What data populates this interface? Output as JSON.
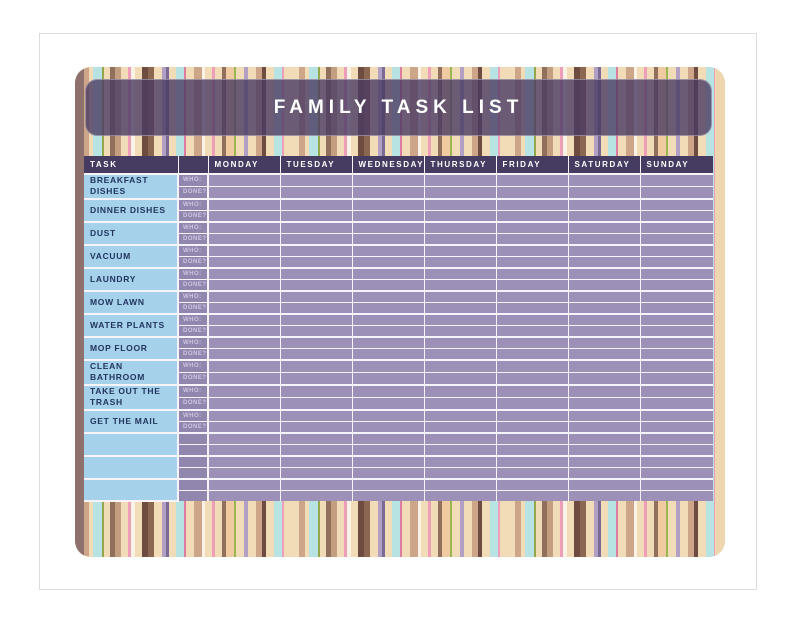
{
  "title": "FAMILY TASK LIST",
  "table": {
    "task_header": "TASK",
    "who_label": "WHO:",
    "done_label": "DONE?",
    "days": [
      "MONDAY",
      "TUESDAY",
      "WEDNESDAY",
      "THURSDAY",
      "FRIDAY",
      "SATURDAY",
      "SUNDAY"
    ],
    "tasks": [
      "BREAKFAST DISHES",
      "DINNER DISHES",
      "DUST",
      "VACUUM",
      "LAUNDRY",
      "MOW LAWN",
      "WATER PLANTS",
      "MOP FLOOR",
      "CLEAN BATHROOM",
      "TAKE OUT THE TRASH",
      "GET THE MAIL"
    ],
    "empty_rows": 3
  },
  "colors": {
    "header_bg": "#463b60",
    "task_col_bg": "#a6d1eb",
    "task_text": "#21355e",
    "cell_bg": "#9c90b8",
    "label_col_bg": "#9186ae",
    "label_text": "#cfc5e0",
    "grid": "#f7f3fa",
    "left_edge": "#8e706d",
    "right_edge": "#eed6b0",
    "banner_overlay": "rgba(74,59,99,0.8)"
  }
}
